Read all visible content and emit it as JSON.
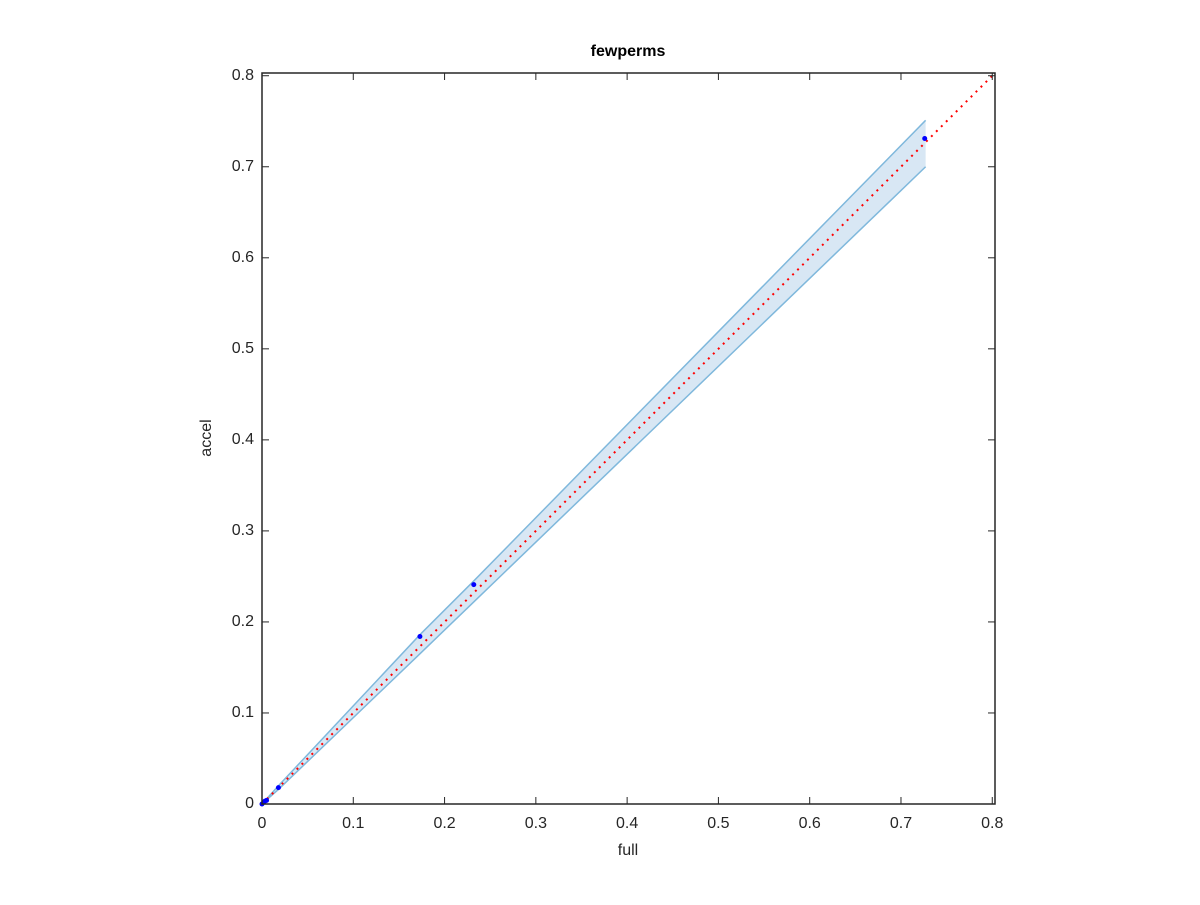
{
  "chart_data": {
    "type": "scatter",
    "title": "fewperms",
    "x_label": "full",
    "y_label": "accel",
    "xlim": [
      0,
      0.803
    ],
    "ylim": [
      0,
      0.803
    ],
    "xticks": [
      0,
      0.1,
      0.2,
      0.3,
      0.4,
      0.5,
      0.6,
      0.7,
      0.8
    ],
    "yticks": [
      0,
      0.1,
      0.2,
      0.3,
      0.4,
      0.5,
      0.6,
      0.7,
      0.8
    ],
    "box": true,
    "band": {
      "x": [
        0,
        0.018,
        0.173,
        0.232,
        0.727
      ],
      "upper": [
        0,
        0.02,
        0.186,
        0.245,
        0.751
      ],
      "lower": [
        0,
        0.016,
        0.165,
        0.222,
        0.7
      ],
      "color": "#7fb8dc",
      "fill": "#d8e7f4"
    },
    "line": {
      "x": [
        0,
        0.803
      ],
      "y": [
        0,
        0.803
      ],
      "color": "#ff0000"
    },
    "points": {
      "x": [
        0,
        0.003,
        0.005,
        0.018,
        0.173,
        0.232,
        0.726
      ],
      "y": [
        0,
        0.003,
        0.004,
        0.018,
        0.184,
        0.241,
        0.731
      ],
      "color": "#0000ff"
    }
  }
}
